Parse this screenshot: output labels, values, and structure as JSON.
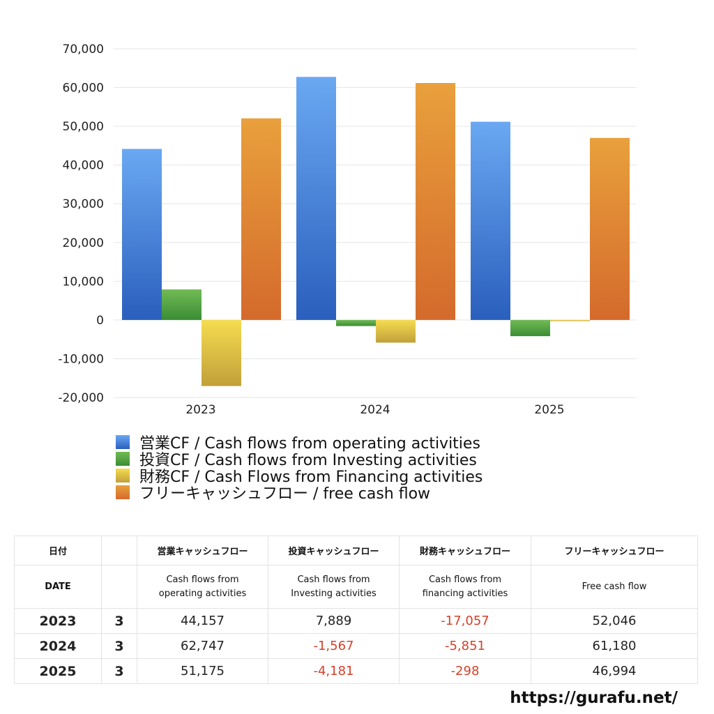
{
  "chart_data": {
    "type": "bar",
    "categories": [
      "2023",
      "2024",
      "2025"
    ],
    "ylim": [
      -20000,
      70000
    ],
    "yticks": [
      "70,000",
      "60,000",
      "50,000",
      "40,000",
      "30,000",
      "20,000",
      "10,000",
      "0",
      "-10,000",
      "-20,000"
    ],
    "ytick_values": [
      70000,
      60000,
      50000,
      40000,
      30000,
      20000,
      10000,
      0,
      -10000,
      -20000
    ],
    "grid": true,
    "legend_position": "bottom-left",
    "series": [
      {
        "name": "営業CF / Cash flows from operating activities",
        "values": [
          44157,
          62747,
          51175
        ],
        "color_top": "#6aa8f2",
        "color_bottom": "#2a5fbd"
      },
      {
        "name": "投資CF / Cash flows from Investing activities",
        "values": [
          7889,
          -1567,
          -4181
        ],
        "color_top": "#72bb55",
        "color_bottom": "#3a8d35"
      },
      {
        "name": "財務CF / Cash Flows from Financing activities",
        "values": [
          -17057,
          -5851,
          -298
        ],
        "color_top": "#f5dc50",
        "color_bottom": "#c1a03a"
      },
      {
        "name": "フリーキャッシュフロー / free cash flow",
        "values": [
          52046,
          61180,
          46994
        ],
        "color_top": "#e9a03c",
        "color_bottom": "#d46a2c"
      }
    ]
  },
  "table": {
    "header_ja": [
      "日付",
      "",
      "営業キャッシュフロー",
      "投資キャッシュフロー",
      "財務キャッシュフロー",
      "フリーキャッシュフロー"
    ],
    "header_en": [
      {
        "l1": "DATE",
        "l2": ""
      },
      {
        "l1": "",
        "l2": ""
      },
      {
        "l1": "Cash flows from",
        "l2": "operating activities"
      },
      {
        "l1": "Cash flows from",
        "l2": "Investing activities"
      },
      {
        "l1": "Cash flows from",
        "l2": "financing activities"
      },
      {
        "l1": "Free cash flow",
        "l2": ""
      }
    ],
    "rows": [
      {
        "year": "2023",
        "month": "3",
        "cells": [
          "44,157",
          "7,889",
          "-17,057",
          "52,046"
        ]
      },
      {
        "year": "2024",
        "month": "3",
        "cells": [
          "62,747",
          "-1,567",
          "-5,851",
          "61,180"
        ]
      },
      {
        "year": "2025",
        "month": "3",
        "cells": [
          "51,175",
          "-4,181",
          "-298",
          "46,994"
        ]
      }
    ]
  },
  "site_url": "https://gurafu.net/"
}
